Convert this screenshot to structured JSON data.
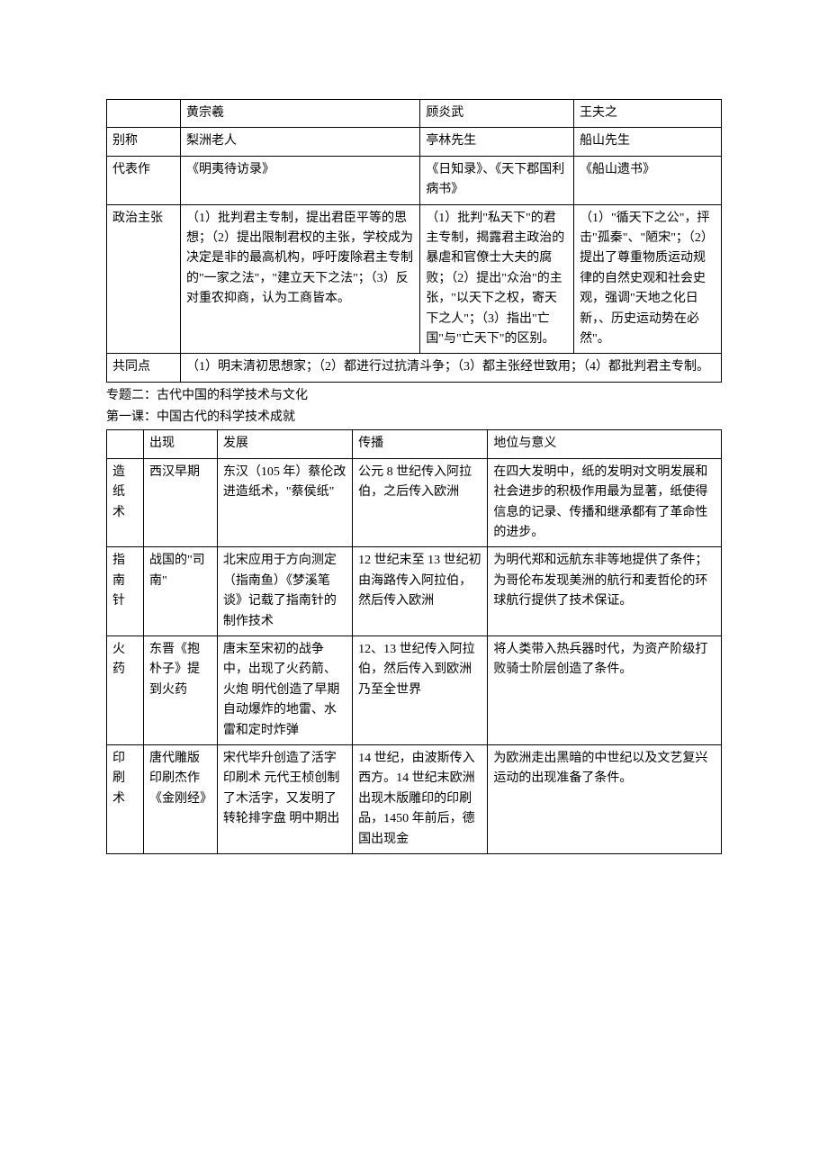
{
  "table1": {
    "colwidths": [
      "12%",
      "39%",
      "25%",
      "24%"
    ],
    "rows": [
      {
        "c0": "",
        "c1": "黄宗羲",
        "c2": "顾炎武",
        "c3": "王夫之"
      },
      {
        "c0": "别称",
        "c1": "梨洲老人",
        "c2": "亭林先生",
        "c3": "船山先生"
      },
      {
        "c0": "代表作",
        "c1": "《明夷待访录》",
        "c2": "《日知录》、《天下郡国利病书》",
        "c3": "《船山遗书》"
      },
      {
        "c0": "政治主张",
        "c1": "（1）批判君主专制，提出君臣平等的思想；（2）提出限制君权的主张，学校成为决定是非的最高机构，呼吁废除君主专制的\"一家之法\"，\"建立天下之法\"；（3）反对重农抑商，认为工商皆本。",
        "c2": "（1）批判\"私天下\"的君主专制，揭露君主政治的暴虐和官僚士大夫的腐败；（2）提出\"众治\"的主张，\"以天下之权，寄天下之人\"；（3）指出\"亡国\"与\"亡天下\"的区别。",
        "c3": "（1）\"循天下之公\"，抨击\"孤秦\"、\"陋宋\"；（2）提出了尊重物质运动规律的自然史观和社会史观，强调\"天地之化日新，、历史运动势在必然\"。"
      },
      {
        "c0": "共同点",
        "c1_3": "（1）明末清初思想家；（2）都进行过抗清斗争；（3）都主张经世致用；（4）都批判君主专制。"
      }
    ]
  },
  "mid": {
    "line1": "专题二：古代中国的科学技术与文化",
    "line2": "第一课：中国古代的科学技术成就"
  },
  "table2": {
    "colwidths": [
      "6%",
      "12%",
      "22%",
      "22%",
      "38%"
    ],
    "rows": [
      {
        "c0": "",
        "c1": "出现",
        "c2": "发展",
        "c3": "传播",
        "c4": "地位与意义"
      },
      {
        "c0": "造纸术",
        "c1": "西汉早期",
        "c2": "东汉（105 年）蔡伦改进造纸术，\"蔡侯纸\"",
        "c3": "公元 8 世纪传入阿拉伯，之后传入欧洲",
        "c4": "在四大发明中，纸的发明对文明发展和社会进步的积极作用最为显著，纸使得信息的记录、传播和继承都有了革命性的进步。"
      },
      {
        "c0": "指南针",
        "c1": "战国的\"司南\"",
        "c2": "北宋应用于方向测定（指南鱼）《梦溪笔谈》记载了指南针的制作技术",
        "c3": "12 世纪末至 13 世纪初由海路传入阿拉伯，然后传入欧洲",
        "c4": "为明代郑和远航东非等地提供了条件；为哥伦布发现美洲的航行和麦哲伦的环球航行提供了技术保证。"
      },
      {
        "c0": "火药",
        "c1": "东晋《抱朴子》提到火药",
        "c2": "唐末至宋初的战争中，出现了火药箭、火炮  明代创造了早期自动爆炸的地雷、水雷和定时炸弹",
        "c3": "12、13 世纪传入阿拉伯，然后传入到欧洲乃至全世界",
        "c4": "将人类带入热兵器时代，为资产阶级打败骑士阶层创造了条件。"
      },
      {
        "c0": "印刷术",
        "c1": "唐代雕版印刷杰作《金刚经》",
        "c2": "宋代毕升创造了活字印刷术  元代王桢创制了木活字，又发明了转轮排字盘  明中期出",
        "c3": "14 世纪，由波斯传入西方。14 世纪末欧洲出现木版雕印的印刷品，1450 年前后，德国出现金",
        "c4": "为欧洲走出黑暗的中世纪以及文艺复兴运动的出现准备了条件。"
      }
    ]
  }
}
